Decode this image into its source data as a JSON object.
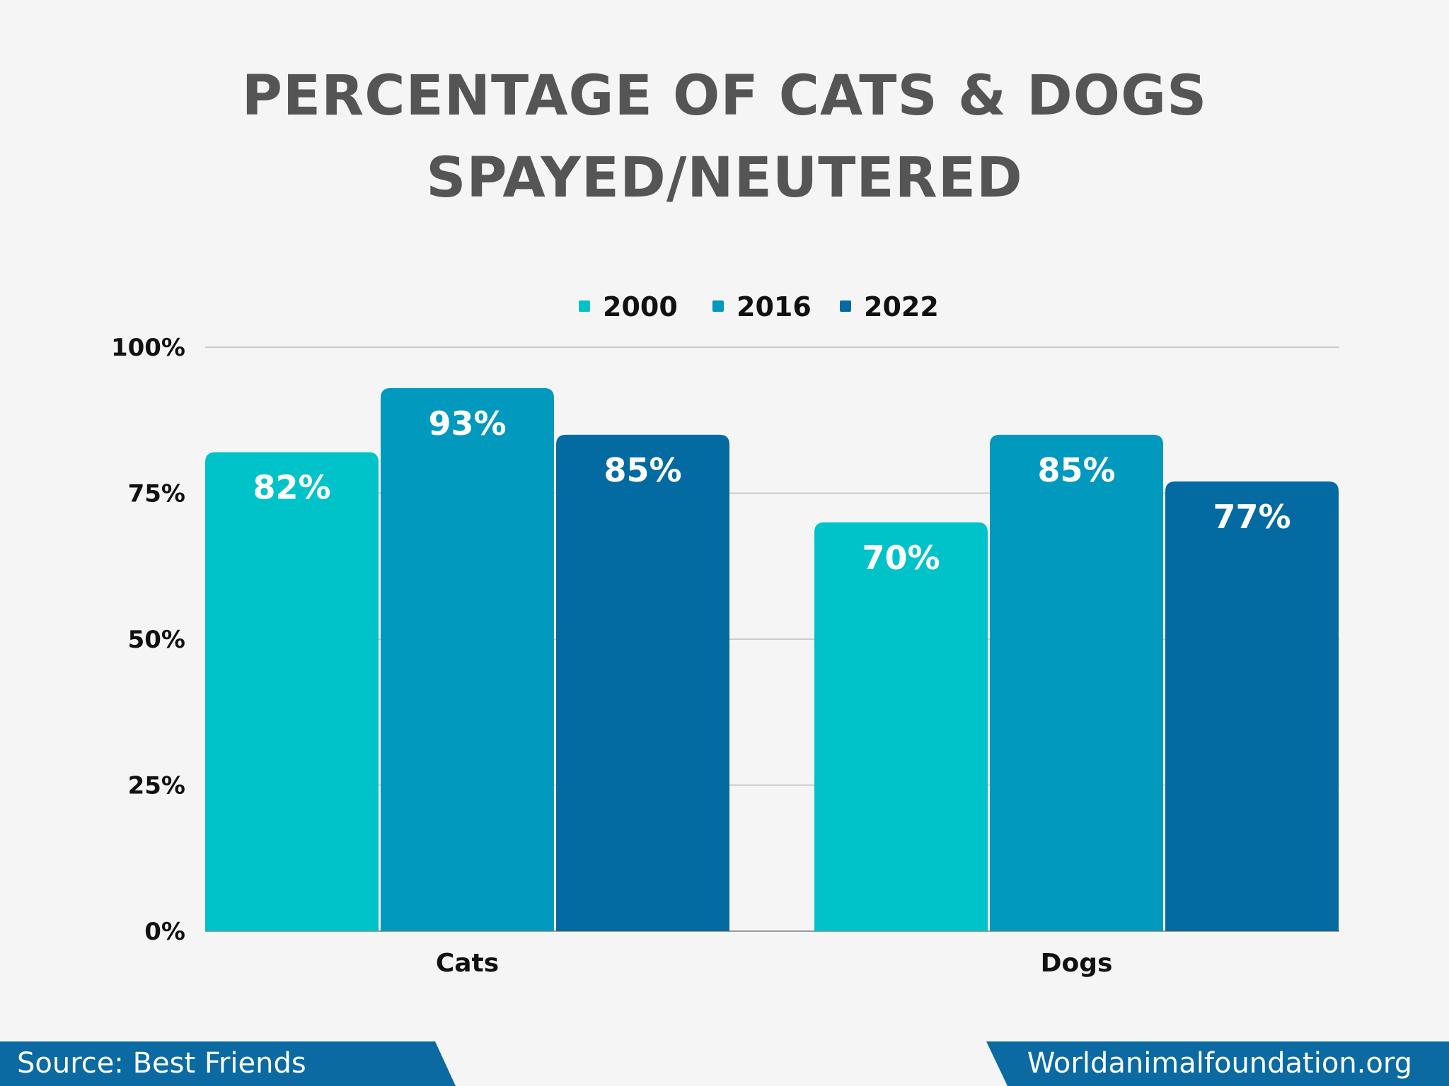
{
  "title": {
    "line1": "PERCENTAGE OF CATS & DOGS",
    "line2": "SPAYED/NEUTERED"
  },
  "footer": {
    "source": "Source: Best Friends",
    "website": "Worldanimalfoundation.org"
  },
  "colors": {
    "background": "#f5f5f5",
    "title": "#555555",
    "footer": "#0a6aa1"
  },
  "chart_data": {
    "type": "bar",
    "categories": [
      "Cats",
      "Dogs"
    ],
    "series": [
      {
        "name": "2000",
        "values": [
          82,
          70
        ],
        "color": "#00c2c9"
      },
      {
        "name": "2016",
        "values": [
          93,
          85
        ],
        "color": "#0199bd"
      },
      {
        "name": "2022",
        "values": [
          85,
          77
        ],
        "color": "#036ba1"
      }
    ],
    "data_labels": [
      [
        "82%",
        "70%"
      ],
      [
        "93%",
        "85%"
      ],
      [
        "85%",
        "77%"
      ]
    ],
    "yticks": [
      0,
      25,
      50,
      75,
      100
    ],
    "ytick_labels": [
      "0%",
      "25%",
      "50%",
      "75%",
      "100%"
    ],
    "ylim": [
      0,
      100
    ],
    "legend": "top-center",
    "grid": true
  }
}
